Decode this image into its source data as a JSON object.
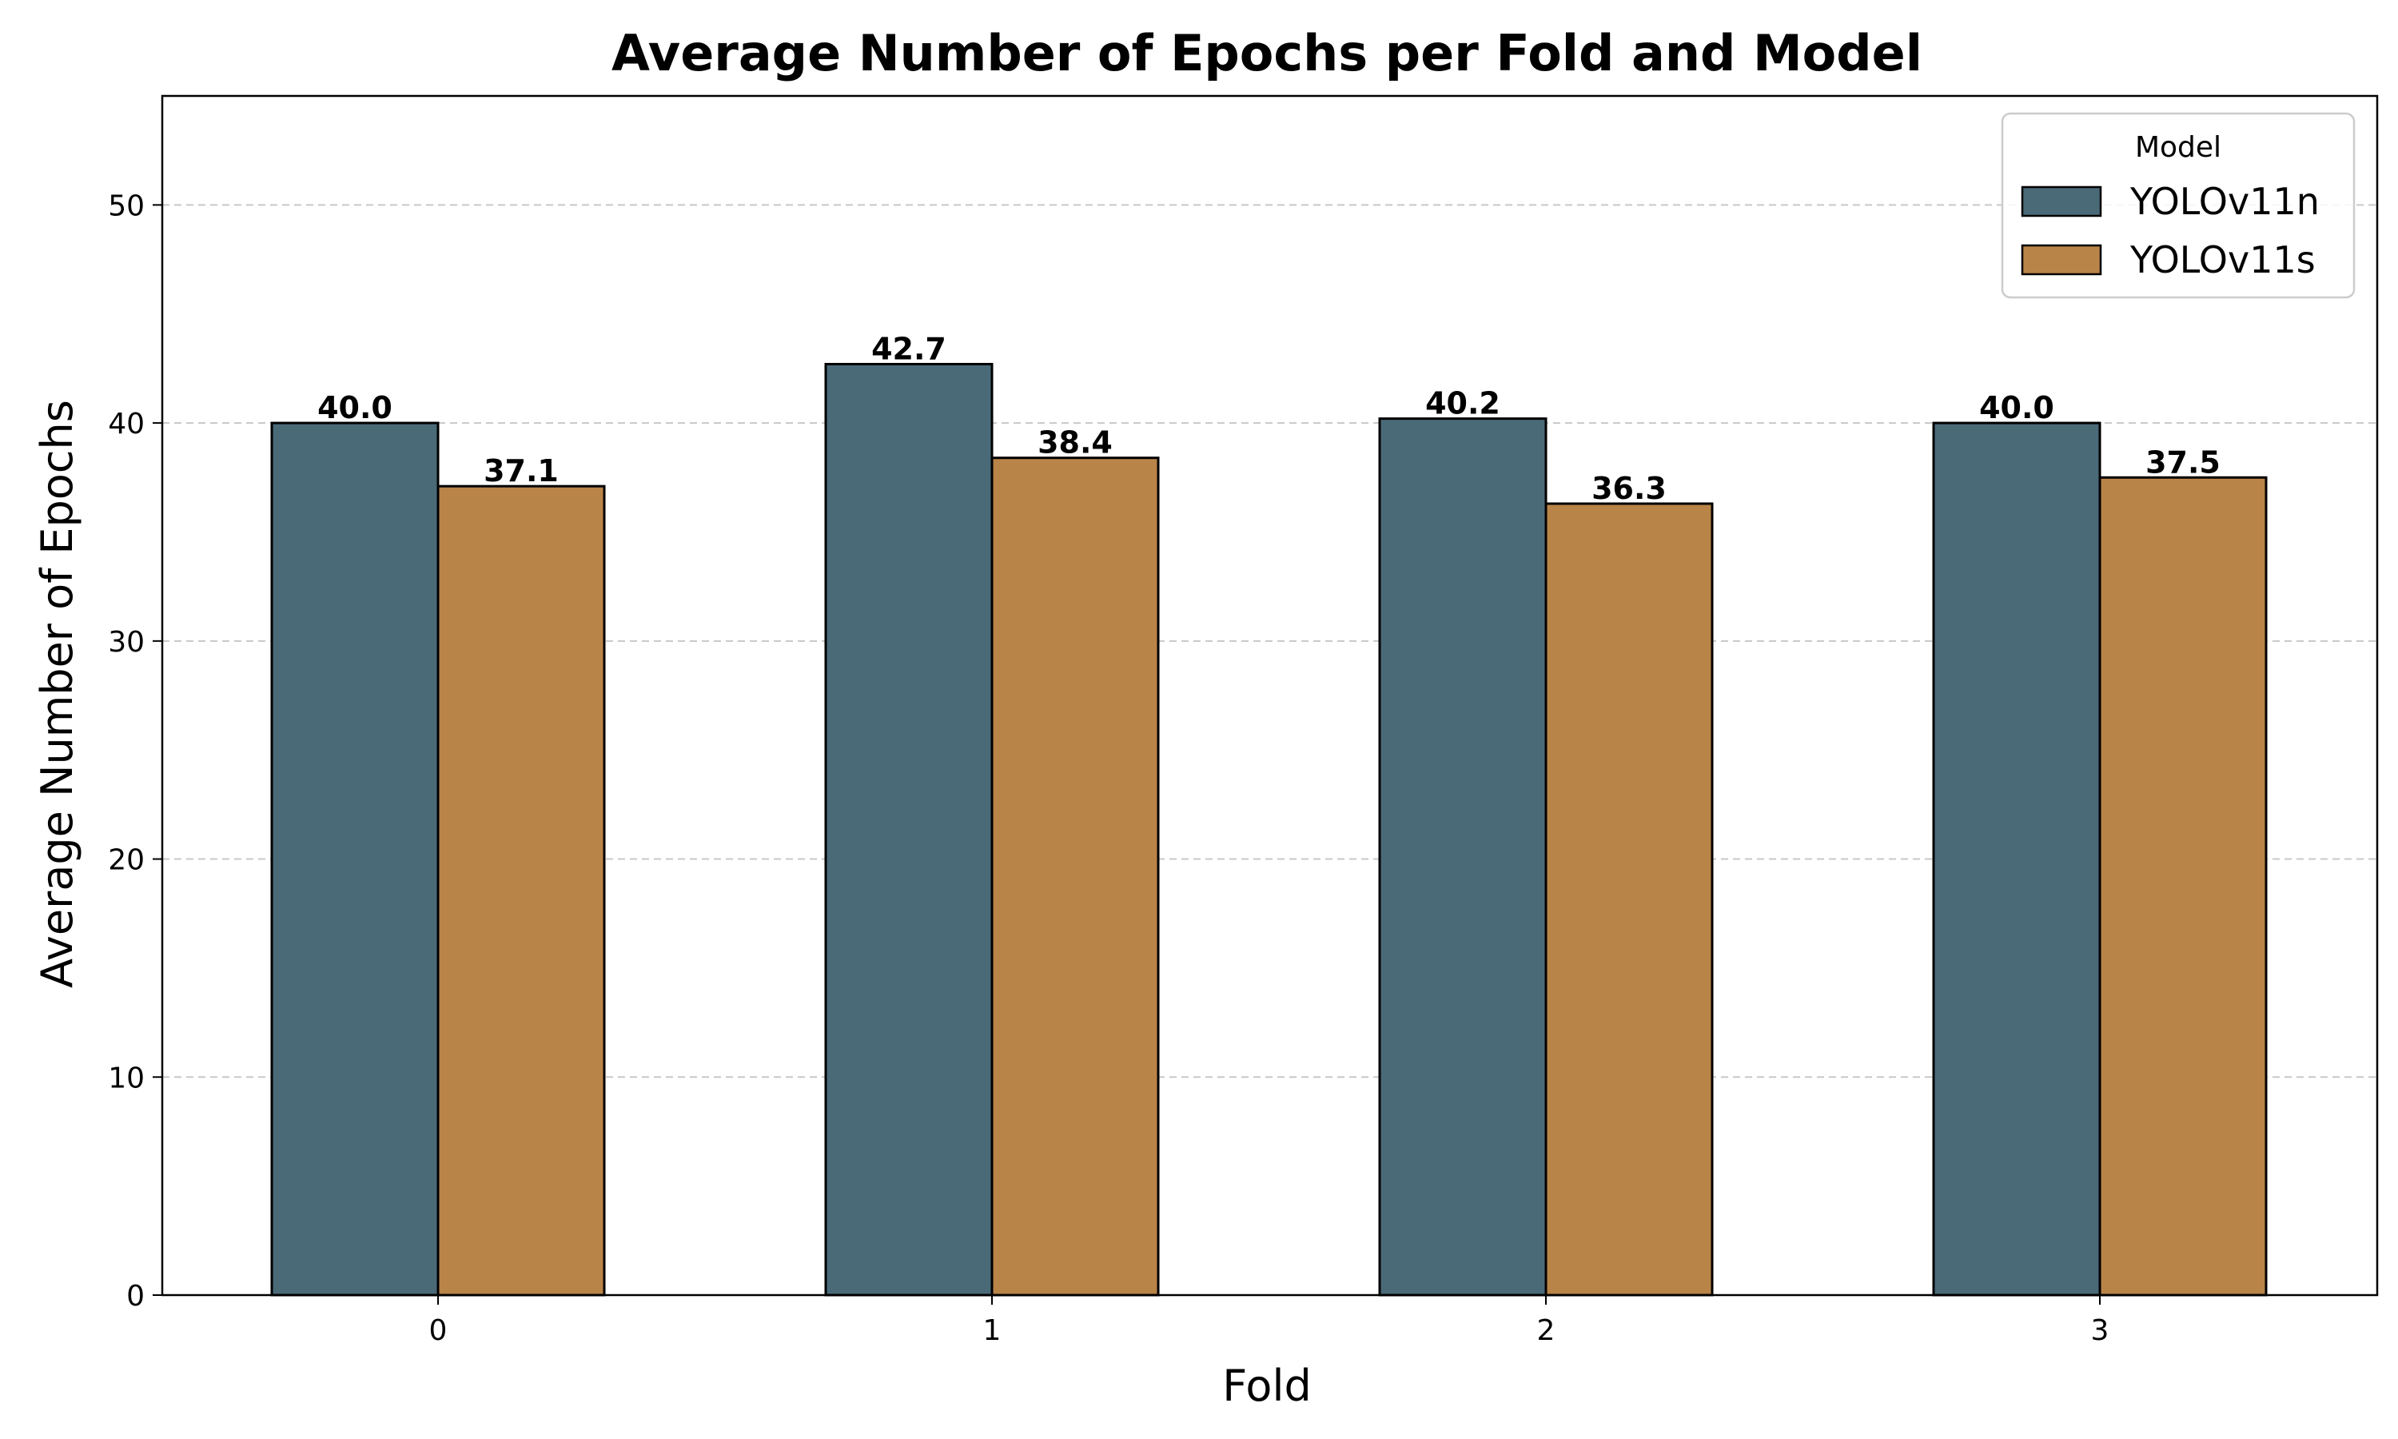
{
  "chart_data": {
    "type": "bar",
    "title": "Average Number of Epochs per Fold and Model",
    "xlabel": "Fold",
    "ylabel": "Average Number of Epochs",
    "categories": [
      "0",
      "1",
      "2",
      "3"
    ],
    "series": [
      {
        "name": "YOLOv11n",
        "color": "#4a6a78",
        "values": [
          40.0,
          42.7,
          40.2,
          40.0
        ],
        "labels": [
          "40.0",
          "42.7",
          "40.2",
          "40.0"
        ]
      },
      {
        "name": "YOLOv11s",
        "color": "#b98448",
        "values": [
          37.1,
          38.4,
          36.3,
          37.5
        ],
        "labels": [
          "37.1",
          "38.4",
          "36.3",
          "37.5"
        ]
      }
    ],
    "ylim": [
      0,
      55
    ],
    "yticks": [
      "0",
      "10",
      "20",
      "30",
      "40",
      "50"
    ],
    "grid": "horizontal dashed",
    "legend": {
      "title": "Model",
      "placement": "top-right"
    }
  }
}
